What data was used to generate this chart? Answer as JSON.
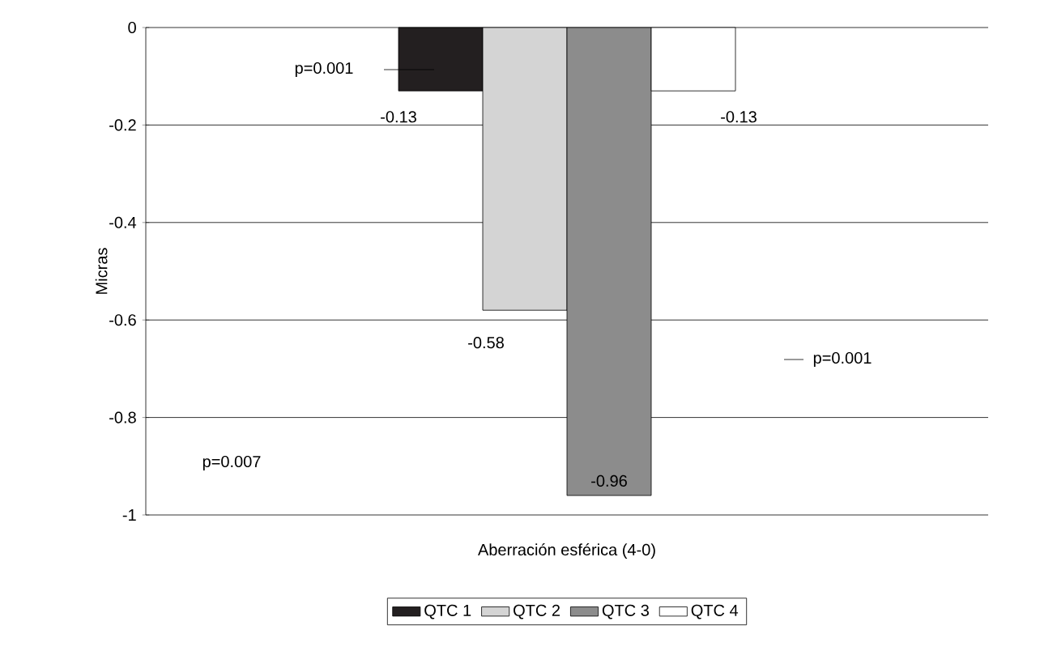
{
  "chart_data": {
    "type": "bar",
    "categories": [
      "Aberración esférica (4-0)"
    ],
    "ylabel": "Micras",
    "series": [
      {
        "name": "QTC 1",
        "color": "#231f20",
        "values": [
          -0.13
        ]
      },
      {
        "name": "QTC 2",
        "color": "#d4d4d4",
        "values": [
          -0.58
        ]
      },
      {
        "name": "QTC 3",
        "color": "#8c8c8c",
        "values": [
          -0.96
        ]
      },
      {
        "name": "QTC 4",
        "color": "#ffffff",
        "values": [
          -0.13
        ]
      }
    ],
    "ylim": [
      -1,
      0
    ],
    "yticks": [
      -1,
      -0.8,
      -0.6,
      -0.4,
      -0.2,
      0
    ],
    "grid": "y",
    "legend": "bottom",
    "data_labels": true,
    "annotations": [
      "p=0.001",
      "p=0.001",
      "p=0.007"
    ]
  }
}
